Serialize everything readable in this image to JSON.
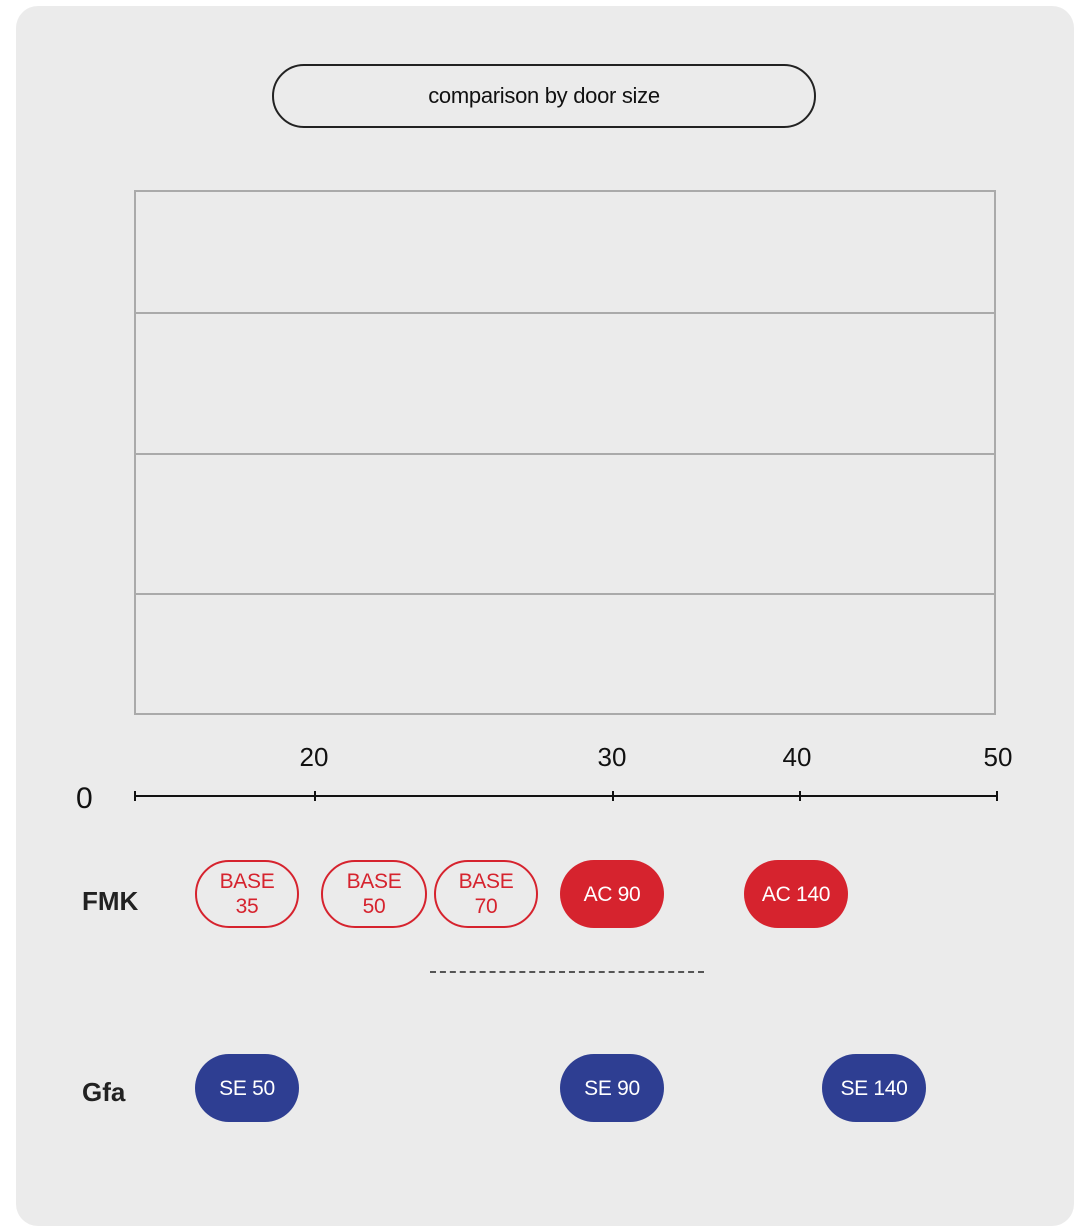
{
  "title": "comparison by door size",
  "axis": {
    "zero_label": "0",
    "ticks": [
      {
        "value": 20,
        "label": "20"
      },
      {
        "value": 30,
        "label": "30"
      },
      {
        "value": 40,
        "label": "40"
      },
      {
        "value": 50,
        "label": "50"
      }
    ]
  },
  "rows": [
    {
      "label": "FMK",
      "items": [
        {
          "label": "BASE\n35",
          "style": "outline-red"
        },
        {
          "label": "BASE\n50",
          "style": "outline-red"
        },
        {
          "label": "BASE\n70",
          "style": "outline-red"
        },
        {
          "label": "AC 90",
          "style": "solid-red"
        },
        {
          "label": "AC 140",
          "style": "solid-red"
        }
      ]
    },
    {
      "label": "Gfa",
      "items": [
        {
          "label": "SE 50",
          "style": "solid-blue"
        },
        {
          "label": "SE 90",
          "style": "solid-blue"
        },
        {
          "label": "SE 140",
          "style": "solid-blue"
        }
      ]
    }
  ],
  "colors": {
    "red": "#d6232e",
    "blue": "#2e3e92",
    "background": "#ebebeb",
    "grid": "#aaaaaa"
  }
}
